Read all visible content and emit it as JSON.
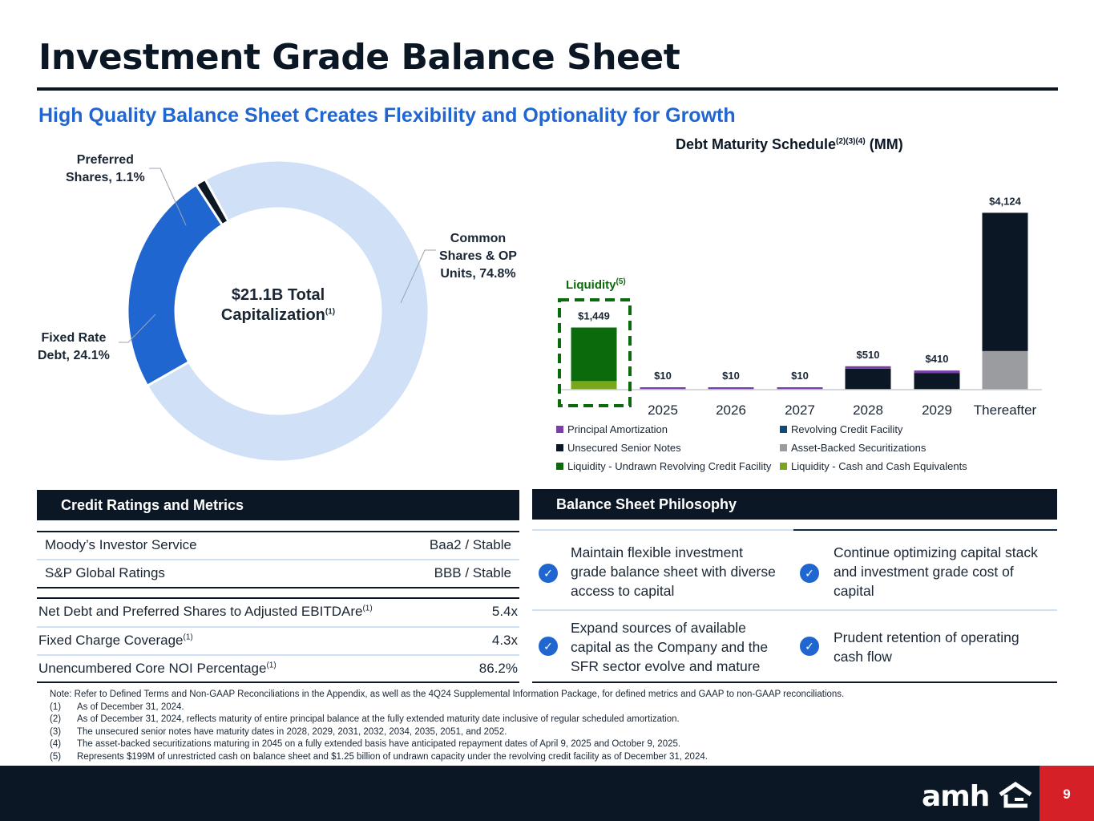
{
  "header": {
    "title": "Investment Grade Balance Sheet",
    "subtitle": "High Quality Balance Sheet Creates Flexibility and Optionality for Growth"
  },
  "capitalization": {
    "center_line1": "$21.1B Total",
    "center_line2": "Capitalization",
    "center_sup": "(1)",
    "segments": [
      {
        "label_line1": "Common",
        "label_line2": "Shares & OP",
        "label_line3": "Units, 74.8%",
        "value": 74.8,
        "color": "#cfe0f7"
      },
      {
        "label_line1": "Fixed Rate",
        "label_line2": "Debt, 24.1%",
        "value": 24.1,
        "color": "#1f66d1"
      },
      {
        "label_line1": "Preferred",
        "label_line2": "Shares, 1.1%",
        "value": 1.1,
        "color": "#0b1724"
      }
    ]
  },
  "chart_data": {
    "type": "bar",
    "title": "Debt Maturity Schedule",
    "title_sup": "(2)(3)(4)",
    "title_suffix": "(MM)",
    "liquidity_label": "Liquidity",
    "liquidity_sup": "(5)",
    "categories": [
      "",
      "2025",
      "2026",
      "2027",
      "2028",
      "2029",
      "Thereafter"
    ],
    "totals_labels": [
      "$1,449",
      "$10",
      "$10",
      "$10",
      "$510",
      "$410",
      "$4,124"
    ],
    "series": [
      {
        "name": "Principal Amortization",
        "color": "#7b3fa8",
        "values": [
          0,
          10,
          10,
          10,
          20,
          20,
          0
        ]
      },
      {
        "name": "Revolving Credit Facility",
        "color": "#0e4a7a",
        "values": [
          0,
          0,
          0,
          0,
          0,
          0,
          0
        ]
      },
      {
        "name": "Unsecured Senior Notes",
        "color": "#0b1724",
        "values": [
          0,
          0,
          0,
          0,
          490,
          390,
          3224
        ]
      },
      {
        "name": "Asset-Backed Securitizations",
        "color": "#9a9ca0",
        "values": [
          0,
          0,
          0,
          0,
          0,
          0,
          900
        ]
      },
      {
        "name": "Liquidity - Undrawn Revolving Credit Facility",
        "color": "#0b6b0b",
        "values": [
          1250,
          0,
          0,
          0,
          0,
          0,
          0
        ]
      },
      {
        "name": "Liquidity - Cash and Cash Equivalents",
        "color": "#7aa61c",
        "values": [
          199,
          0,
          0,
          0,
          0,
          0,
          0
        ]
      }
    ],
    "ylim": [
      0,
      4300
    ],
    "legend": "bottom"
  },
  "credit": {
    "heading": "Credit Ratings and Metrics",
    "ratings": [
      {
        "label": "Moody’s Investor Service",
        "value": "Baa2 / Stable"
      },
      {
        "label": "S&P Global Ratings",
        "value": "BBB / Stable"
      }
    ],
    "metrics": [
      {
        "label": "Net Debt and Preferred Shares to Adjusted EBITDAre",
        "sup": "(1)",
        "value": "5.4x"
      },
      {
        "label": "Fixed Charge Coverage",
        "sup": "(1)",
        "value": "4.3x"
      },
      {
        "label": "Unencumbered Core NOI Percentage",
        "sup": "(1)",
        "value": "86.2%"
      }
    ]
  },
  "philosophy": {
    "heading": "Balance Sheet Philosophy",
    "items": [
      {
        "line1": "Maintain flexible investment",
        "line2": "grade balance sheet with diverse",
        "line3": "access to capital"
      },
      {
        "line1": "Continue optimizing capital stack",
        "line2": "and investment grade cost of",
        "line3": "capital"
      },
      {
        "line1": "Expand sources of available",
        "line2": "capital as the Company and the",
        "line3": "SFR sector evolve and mature"
      },
      {
        "line1": "Prudent retention of operating",
        "line2": "cash flow",
        "line3": ""
      }
    ],
    "check_icon": "check-circle-icon"
  },
  "notes": {
    "intro": "Note: Refer to Defined Terms and Non-GAAP Reconciliations in the Appendix, as well as the 4Q24 Supplemental Information Package, for defined metrics and GAAP to non-GAAP reconciliations.",
    "items": [
      {
        "num": "(1)",
        "text": "As of December 31, 2024."
      },
      {
        "num": "(2)",
        "text": "As of December 31, 2024, reflects maturity of entire principal balance at the fully extended maturity date inclusive of regular scheduled amortization."
      },
      {
        "num": "(3)",
        "text": "The unsecured senior notes have maturity dates in 2028, 2029, 2031, 2032, 2034, 2035, 2051, and 2052."
      },
      {
        "num": "(4)",
        "text": "The asset-backed securitizations maturing in 2045 on a fully extended basis have anticipated repayment dates of April 9, 2025 and October 9, 2025."
      },
      {
        "num": "(5)",
        "text": "Represents $199M of unrestricted cash on balance sheet and $1.25 billion of undrawn capacity under the revolving credit facility as of December 31, 2024."
      }
    ]
  },
  "footer": {
    "logo_text": "amh",
    "page_number": "9"
  }
}
